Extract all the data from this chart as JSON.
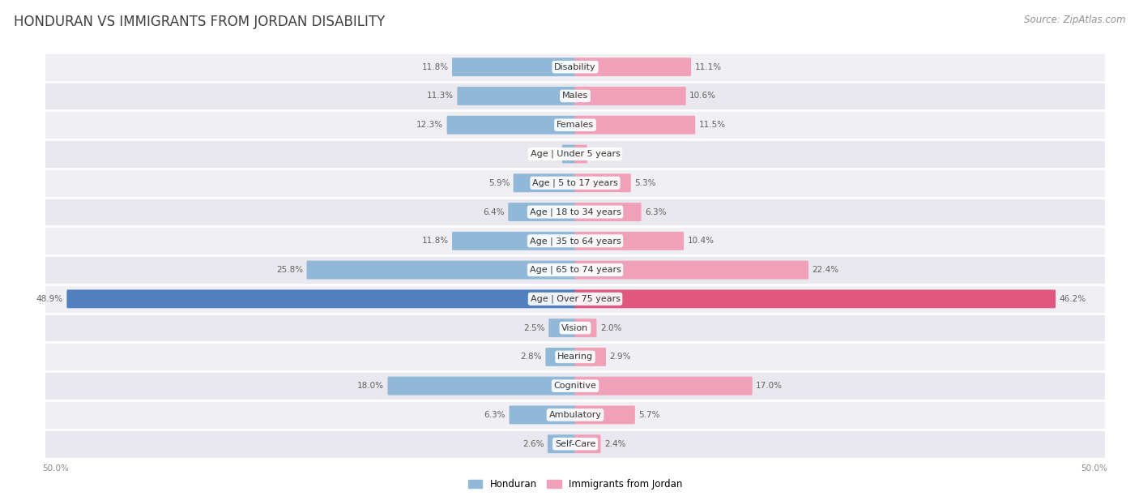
{
  "title": "HONDURAN VS IMMIGRANTS FROM JORDAN DISABILITY",
  "source": "Source: ZipAtlas.com",
  "categories": [
    "Disability",
    "Males",
    "Females",
    "Age | Under 5 years",
    "Age | 5 to 17 years",
    "Age | 18 to 34 years",
    "Age | 35 to 64 years",
    "Age | 65 to 74 years",
    "Age | Over 75 years",
    "Vision",
    "Hearing",
    "Cognitive",
    "Ambulatory",
    "Self-Care"
  ],
  "honduran_values": [
    11.8,
    11.3,
    12.3,
    1.2,
    5.9,
    6.4,
    11.8,
    25.8,
    48.9,
    2.5,
    2.8,
    18.0,
    6.3,
    2.6
  ],
  "jordan_values": [
    11.1,
    10.6,
    11.5,
    1.1,
    5.3,
    6.3,
    10.4,
    22.4,
    46.2,
    2.0,
    2.9,
    17.0,
    5.7,
    2.4
  ],
  "max_value": 50.0,
  "honduran_color": "#92b8d8",
  "jordan_color": "#f0a0b8",
  "honduran_highlight_color": "#5080c0",
  "jordan_highlight_color": "#e05880",
  "bg_color": "#ffffff",
  "row_bg_even": "#f0f0f4",
  "row_bg_odd": "#e8e8ee",
  "separator_color": "#ffffff",
  "title_color": "#404040",
  "source_color": "#909090",
  "value_color": "#606060",
  "label_bg": "#ffffff",
  "title_fontsize": 12,
  "source_fontsize": 8.5,
  "label_fontsize": 8,
  "value_fontsize": 7.5,
  "legend_fontsize": 8.5,
  "axis_fontsize": 7.5
}
